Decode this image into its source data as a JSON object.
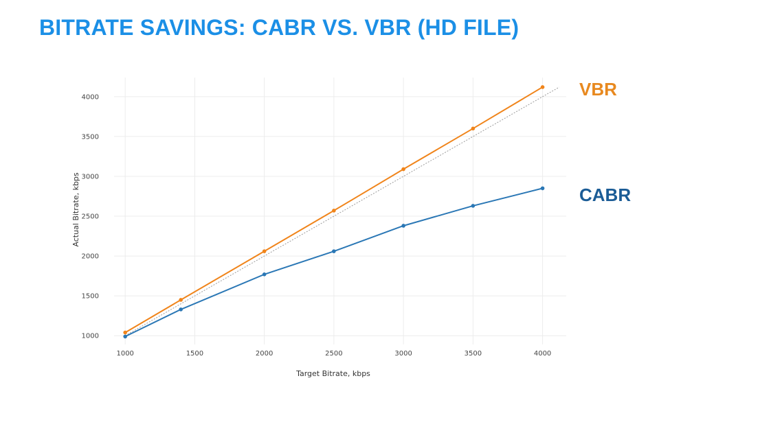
{
  "title": "BITRATE SAVINGS: CABR VS. VBR (HD FILE)",
  "colors": {
    "title": "#1b8fe6",
    "vbr": "#f0841a",
    "cabr": "#2a77b5",
    "cabr_label": "#1b5c96",
    "vbr_label": "#e8891f",
    "reference": "#9a9a9a",
    "grid": "#ececec"
  },
  "chart_data": {
    "type": "line",
    "xlabel": "Target Bitrate, kbps",
    "ylabel": "Actual Bitrate, kbps",
    "xlim": [
      920,
      4170
    ],
    "ylim": [
      890,
      4240
    ],
    "x_ticks": [
      1000,
      1500,
      2000,
      2500,
      3000,
      3500,
      4000
    ],
    "y_ticks": [
      1000,
      1500,
      2000,
      2500,
      3000,
      3500,
      4000
    ],
    "grid": true,
    "legend": "inline-right",
    "x": [
      1000,
      1400,
      2000,
      2500,
      3000,
      3500,
      4000
    ],
    "series": [
      {
        "name": "VBR",
        "values": [
          1040,
          1450,
          2060,
          2570,
          3090,
          3600,
          4120
        ]
      },
      {
        "name": "CABR",
        "values": [
          990,
          1330,
          1770,
          2060,
          2380,
          2630,
          2850
        ]
      }
    ],
    "reference_line": {
      "name": "target = actual",
      "x": [
        1000,
        4120
      ],
      "values": [
        1000,
        4120
      ]
    }
  }
}
